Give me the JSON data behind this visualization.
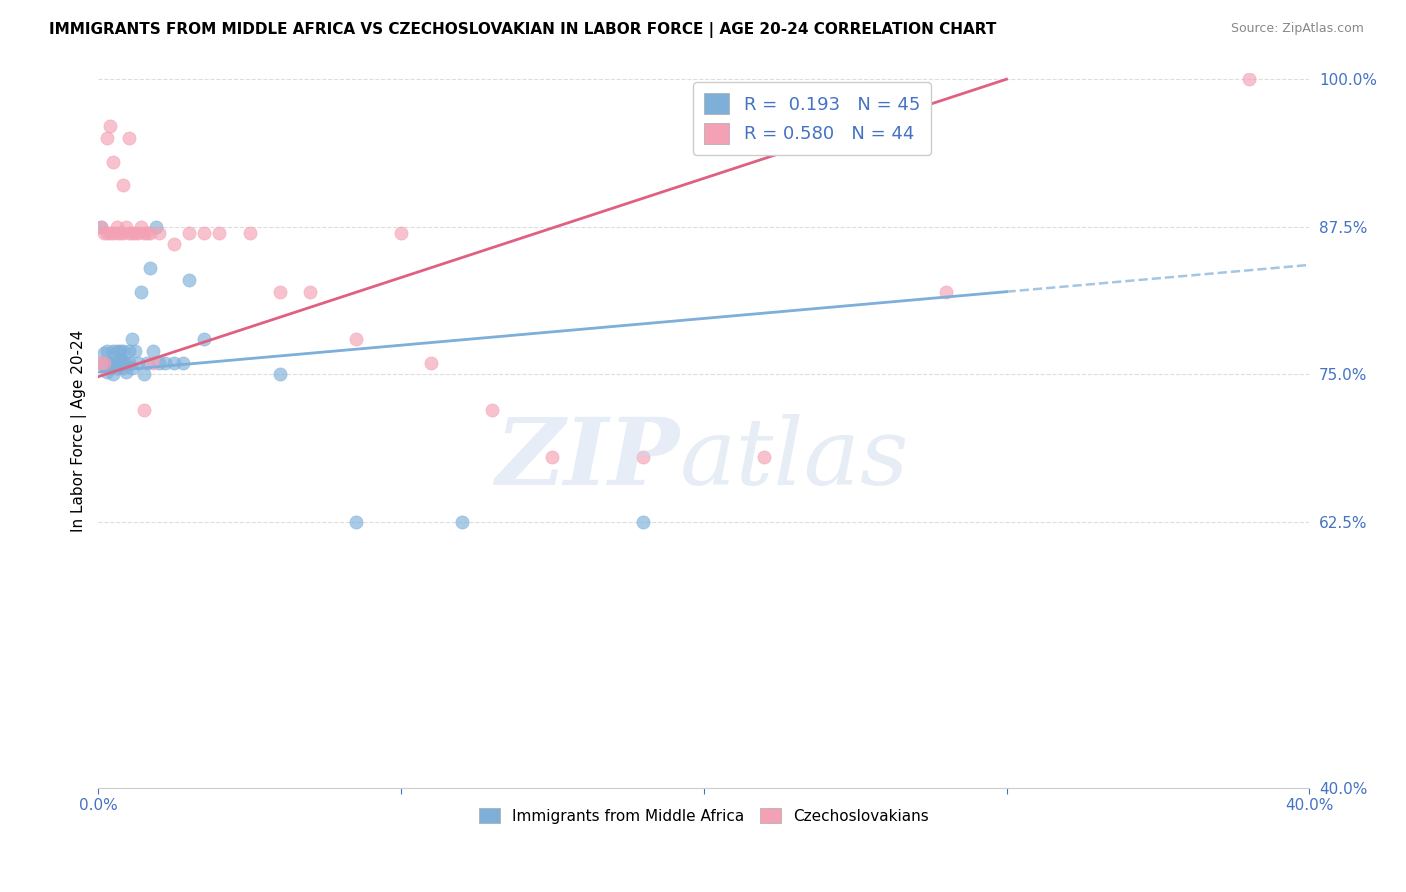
{
  "title": "IMMIGRANTS FROM MIDDLE AFRICA VS CZECHOSLOVAKIAN IN LABOR FORCE | AGE 20-24 CORRELATION CHART",
  "source": "Source: ZipAtlas.com",
  "ylabel": "In Labor Force | Age 20-24",
  "xlim": [
    0.0,
    0.4
  ],
  "ylim": [
    0.4,
    1.005
  ],
  "xticks": [
    0.0,
    0.1,
    0.2,
    0.3,
    0.4
  ],
  "xticklabels": [
    "0.0%",
    "",
    "",
    "",
    "40.0%"
  ],
  "yticks": [
    0.4,
    0.625,
    0.75,
    0.875,
    1.0
  ],
  "yticklabels": [
    "40.0%",
    "62.5%",
    "75.0%",
    "87.5%",
    "100.0%"
  ],
  "blue_color": "#7dafd9",
  "pink_color": "#f4a0b5",
  "blue_R": 0.193,
  "blue_N": 45,
  "pink_R": 0.58,
  "pink_N": 44,
  "legend_label_blue": "Immigrants from Middle Africa",
  "legend_label_pink": "Czechoslovakians",
  "blue_line_x0": 0.0,
  "blue_line_y0": 0.752,
  "blue_line_x1": 0.3,
  "blue_line_y1": 0.82,
  "pink_line_x0": 0.0,
  "pink_line_y0": 0.748,
  "pink_line_x1": 0.3,
  "pink_line_y1": 1.0,
  "blue_scatter_x": [
    0.001,
    0.001,
    0.002,
    0.002,
    0.003,
    0.003,
    0.003,
    0.004,
    0.004,
    0.005,
    0.005,
    0.005,
    0.006,
    0.006,
    0.006,
    0.007,
    0.007,
    0.007,
    0.008,
    0.008,
    0.008,
    0.009,
    0.009,
    0.01,
    0.01,
    0.011,
    0.011,
    0.012,
    0.013,
    0.014,
    0.015,
    0.016,
    0.017,
    0.018,
    0.019,
    0.02,
    0.022,
    0.025,
    0.028,
    0.03,
    0.035,
    0.06,
    0.085,
    0.12,
    0.18
  ],
  "blue_scatter_y": [
    0.76,
    0.875,
    0.758,
    0.768,
    0.76,
    0.77,
    0.752,
    0.755,
    0.76,
    0.77,
    0.75,
    0.76,
    0.76,
    0.755,
    0.77,
    0.758,
    0.77,
    0.762,
    0.76,
    0.77,
    0.755,
    0.76,
    0.752,
    0.76,
    0.77,
    0.755,
    0.78,
    0.77,
    0.76,
    0.82,
    0.75,
    0.76,
    0.84,
    0.77,
    0.875,
    0.76,
    0.76,
    0.76,
    0.76,
    0.83,
    0.78,
    0.75,
    0.625,
    0.625,
    0.625
  ],
  "pink_scatter_x": [
    0.001,
    0.001,
    0.002,
    0.002,
    0.003,
    0.003,
    0.004,
    0.004,
    0.005,
    0.005,
    0.006,
    0.006,
    0.007,
    0.008,
    0.008,
    0.009,
    0.01,
    0.01,
    0.011,
    0.012,
    0.013,
    0.014,
    0.015,
    0.015,
    0.016,
    0.017,
    0.018,
    0.02,
    0.025,
    0.03,
    0.035,
    0.04,
    0.05,
    0.06,
    0.07,
    0.085,
    0.1,
    0.11,
    0.13,
    0.15,
    0.18,
    0.22,
    0.28,
    0.38
  ],
  "pink_scatter_y": [
    0.76,
    0.875,
    0.76,
    0.87,
    0.87,
    0.95,
    0.87,
    0.96,
    0.87,
    0.93,
    0.875,
    0.87,
    0.87,
    0.87,
    0.91,
    0.875,
    0.87,
    0.95,
    0.87,
    0.87,
    0.87,
    0.875,
    0.87,
    0.72,
    0.87,
    0.87,
    0.76,
    0.87,
    0.86,
    0.87,
    0.87,
    0.87,
    0.87,
    0.82,
    0.82,
    0.78,
    0.87,
    0.76,
    0.72,
    0.68,
    0.68,
    0.68,
    0.82,
    1.0
  ],
  "grid_color": "#dddddd",
  "axis_color": "#4472c4"
}
